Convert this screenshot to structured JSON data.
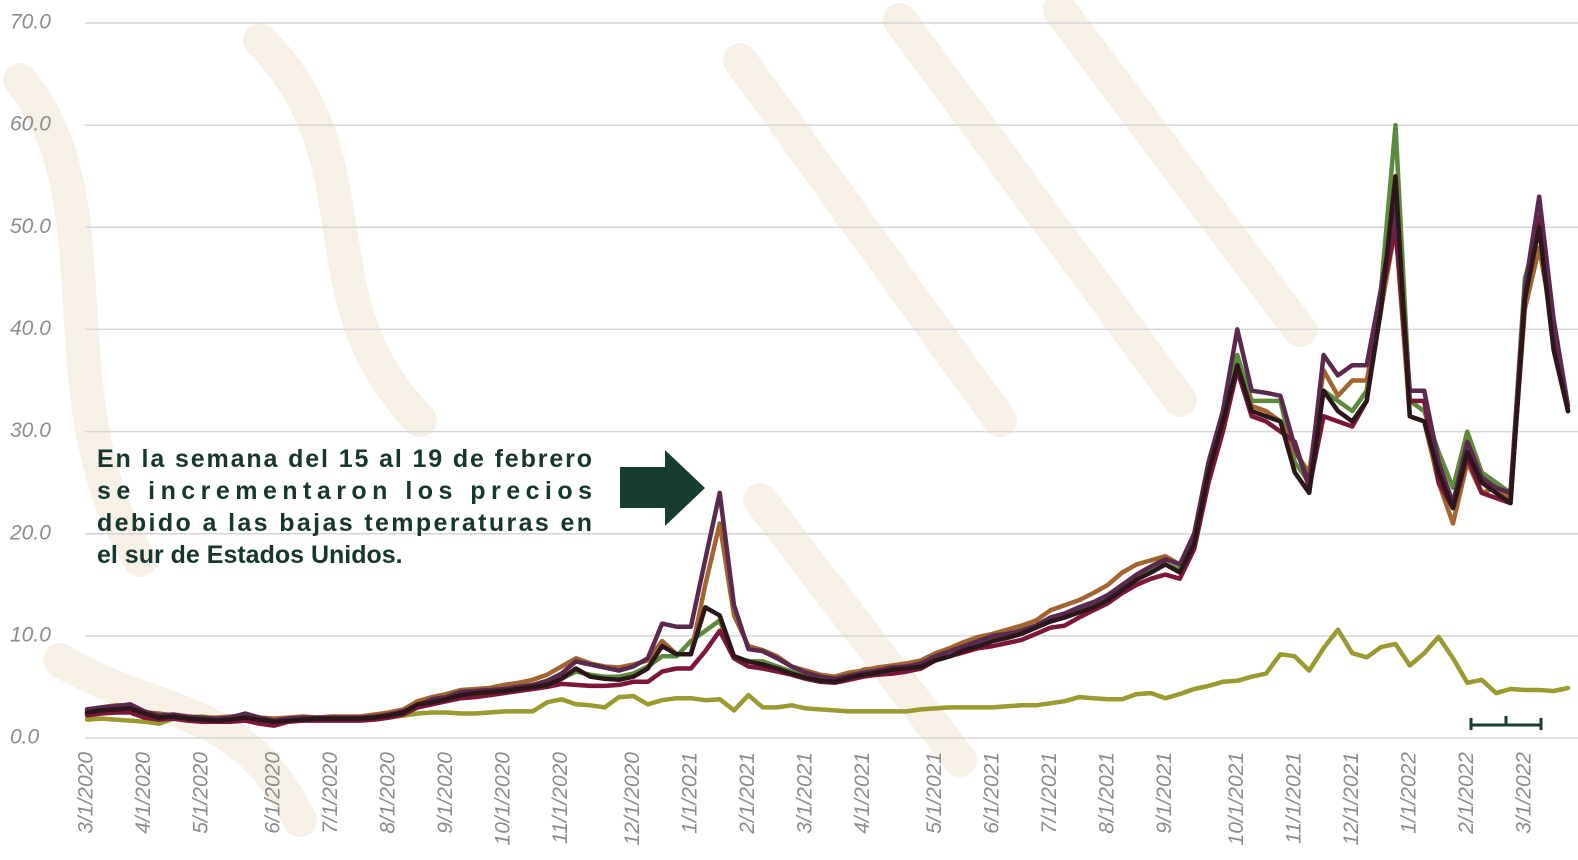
{
  "chart_data": {
    "type": "line",
    "ylim": [
      0,
      70
    ],
    "yticks": [
      {
        "value": 0,
        "label": "0.0"
      },
      {
        "value": 10,
        "label": "10.0"
      },
      {
        "value": 20,
        "label": "20.0"
      },
      {
        "value": 30,
        "label": "30.0"
      },
      {
        "value": 40,
        "label": "40.0"
      },
      {
        "value": 50,
        "label": "50.0"
      },
      {
        "value": 60,
        "label": "60.0"
      },
      {
        "value": 70,
        "label": "70.0"
      }
    ],
    "grid": true,
    "annotation": [
      "En la semana del 15 al 19 de febrero",
      "se incrementaron los precios",
      "debido a las bajas temperaturas en",
      "el sur de Estados Unidos."
    ],
    "categories": [
      "3/1/2020",
      null,
      null,
      null,
      "4/1/2020",
      null,
      null,
      null,
      "5/1/2020",
      null,
      null,
      null,
      null,
      "6/1/2020",
      null,
      null,
      null,
      "7/1/2020",
      null,
      null,
      null,
      "8/1/2020",
      null,
      null,
      null,
      "9/1/2020",
      null,
      null,
      null,
      "10/1/2020",
      null,
      null,
      null,
      "11/1/2020",
      null,
      null,
      null,
      null,
      "12/1/2020",
      null,
      null,
      null,
      "1/1/2021",
      null,
      null,
      null,
      "2/1/2021",
      null,
      null,
      null,
      "3/1/2021",
      null,
      null,
      null,
      "4/1/2021",
      null,
      null,
      null,
      null,
      "5/1/2021",
      null,
      null,
      null,
      "6/1/2021",
      null,
      null,
      null,
      "7/1/2021",
      null,
      null,
      null,
      "8/1/2021",
      null,
      null,
      null,
      "9/1/2021",
      null,
      null,
      null,
      null,
      "10/1/2021",
      null,
      null,
      null,
      "11/1/2021",
      null,
      null,
      null,
      "12/1/2021",
      null,
      null,
      null,
      "1/1/2022",
      null,
      null,
      null,
      "2/1/2022",
      null,
      null,
      null,
      "3/1/2022",
      null,
      null,
      null
    ],
    "series": [
      {
        "color": "#9a9a30",
        "values": [
          1.8,
          1.9,
          1.8,
          1.7,
          1.6,
          1.4,
          1.9,
          2.0,
          2.1,
          1.9,
          1.9,
          2.0,
          2.0,
          1.9,
          1.8,
          1.8,
          1.9,
          2.0,
          2.0,
          2.0,
          2.0,
          2.0,
          2.2,
          2.4,
          2.5,
          2.5,
          2.4,
          2.4,
          2.5,
          2.6,
          2.6,
          2.6,
          3.5,
          3.8,
          3.3,
          3.2,
          3.0,
          4.0,
          4.1,
          3.3,
          3.7,
          3.9,
          3.9,
          3.7,
          3.8,
          2.7,
          4.2,
          3.0,
          3.0,
          3.2,
          2.9,
          2.8,
          2.7,
          2.6,
          2.6,
          2.6,
          2.6,
          2.6,
          2.8,
          2.9,
          3.0,
          3.0,
          3.0,
          3.0,
          3.1,
          3.2,
          3.2,
          3.4,
          3.6,
          4.0,
          3.9,
          3.8,
          3.8,
          4.3,
          4.4,
          3.9,
          4.3,
          4.8,
          5.1,
          5.5,
          5.6,
          6.0,
          6.3,
          8.2,
          8.0,
          6.6,
          8.8,
          10.6,
          8.3,
          7.9,
          8.9,
          9.2,
          7.1,
          8.3,
          9.9,
          7.8,
          5.4,
          5.7,
          4.4,
          4.8,
          4.7,
          4.7,
          4.6,
          4.9
        ]
      },
      {
        "color": "#5e8a3e",
        "values": [
          2.4,
          2.6,
          2.7,
          2.8,
          2.3,
          2.1,
          2.1,
          1.9,
          1.8,
          1.8,
          1.9,
          2.0,
          1.8,
          1.6,
          1.8,
          1.9,
          1.9,
          1.9,
          1.9,
          1.9,
          2.0,
          2.2,
          2.4,
          3.0,
          3.5,
          3.8,
          4.2,
          4.4,
          4.6,
          4.7,
          4.8,
          5.0,
          5.4,
          5.8,
          6.5,
          6.2,
          6.0,
          6.0,
          6.3,
          7.0,
          8.0,
          8.0,
          9.5,
          10.5,
          11.5,
          8.0,
          7.5,
          7.5,
          7.0,
          6.5,
          6.0,
          5.7,
          5.6,
          6.0,
          6.7,
          6.8,
          6.8,
          7.0,
          7.5,
          8.2,
          8.7,
          9.0,
          9.2,
          9.6,
          10.0,
          10.6,
          11.0,
          11.5,
          12.0,
          12.5,
          13.0,
          13.8,
          14.8,
          15.8,
          16.5,
          17.0,
          16.5,
          19.0,
          26.0,
          31.0,
          37.5,
          33.0,
          33.0,
          33.0,
          27.0,
          25.0,
          34.0,
          33.0,
          32.0,
          34.0,
          44.0,
          60.0,
          33.0,
          32.0,
          28.0,
          24.5,
          30.0,
          26.0,
          25.0,
          24.0,
          45.0,
          50.0,
          40.0,
          32.0
        ]
      },
      {
        "color": "#a2652f",
        "values": [
          2.6,
          3.0,
          3.2,
          3.2,
          2.5,
          2.4,
          2.2,
          2.0,
          2.0,
          2.0,
          2.1,
          2.2,
          2.0,
          1.9,
          2.0,
          2.1,
          2.0,
          2.1,
          2.1,
          2.1,
          2.3,
          2.5,
          2.8,
          3.6,
          4.0,
          4.3,
          4.7,
          4.8,
          4.9,
          5.2,
          5.4,
          5.7,
          6.2,
          7.0,
          7.8,
          7.3,
          7.0,
          6.9,
          7.2,
          7.6,
          9.5,
          8.2,
          8.2,
          15.0,
          21.0,
          12.0,
          9.0,
          8.6,
          8.0,
          7.0,
          6.6,
          6.2,
          6.0,
          6.4,
          6.6,
          6.9,
          7.1,
          7.3,
          7.6,
          8.3,
          8.8,
          9.4,
          9.9,
          10.2,
          10.6,
          11.0,
          11.5,
          12.5,
          13.0,
          13.5,
          14.2,
          15.0,
          16.2,
          17.0,
          17.4,
          17.8,
          17.0,
          19.5,
          26.0,
          31.0,
          36.0,
          32.5,
          32.0,
          31.0,
          28.0,
          26.0,
          36.0,
          33.5,
          35.0,
          35.0,
          42.0,
          50.0,
          31.5,
          31.0,
          25.0,
          21.0,
          27.0,
          24.0,
          24.5,
          23.5,
          42.0,
          48.0,
          40.0,
          32.0
        ]
      },
      {
        "color": "#7d1638",
        "values": [
          2.2,
          2.4,
          2.5,
          2.5,
          2.0,
          1.8,
          1.9,
          1.7,
          1.6,
          1.6,
          1.6,
          1.7,
          1.4,
          1.2,
          1.6,
          1.7,
          1.7,
          1.7,
          1.7,
          1.7,
          1.8,
          2.0,
          2.3,
          3.0,
          3.3,
          3.6,
          3.9,
          4.0,
          4.2,
          4.4,
          4.6,
          4.8,
          5.0,
          5.3,
          5.2,
          5.1,
          5.1,
          5.2,
          5.5,
          5.5,
          6.5,
          6.8,
          6.8,
          8.5,
          10.5,
          7.8,
          7.0,
          6.8,
          6.5,
          6.2,
          5.8,
          5.5,
          5.4,
          5.7,
          6.0,
          6.2,
          6.3,
          6.5,
          6.8,
          7.6,
          8.0,
          8.4,
          8.8,
          9.0,
          9.3,
          9.6,
          10.2,
          10.8,
          11.0,
          11.8,
          12.5,
          13.2,
          14.2,
          15.0,
          15.6,
          16.0,
          15.6,
          18.5,
          25.0,
          30.0,
          36.0,
          31.5,
          31.0,
          30.0,
          29.0,
          24.5,
          31.5,
          31.0,
          30.5,
          33.0,
          43.0,
          50.0,
          33.0,
          33.0,
          25.0,
          22.5,
          27.5,
          24.0,
          23.5,
          23.0,
          43.0,
          51.0,
          39.0,
          32.0
        ]
      },
      {
        "color": "#5a2a4e",
        "values": [
          2.8,
          3.0,
          3.1,
          3.3,
          2.6,
          2.2,
          2.3,
          2.1,
          2.0,
          1.9,
          2.0,
          2.4,
          2.0,
          1.7,
          1.9,
          2.0,
          2.0,
          2.0,
          2.0,
          2.0,
          2.1,
          2.3,
          2.6,
          3.2,
          3.8,
          4.0,
          4.5,
          4.6,
          4.7,
          4.8,
          5.0,
          5.2,
          5.6,
          6.3,
          7.5,
          7.2,
          6.9,
          6.6,
          7.0,
          7.8,
          11.2,
          10.9,
          10.9,
          17.5,
          24.0,
          13.0,
          8.7,
          8.5,
          7.8,
          7.0,
          6.4,
          6.0,
          5.8,
          6.1,
          6.4,
          6.6,
          6.9,
          7.0,
          7.3,
          8.0,
          8.5,
          9.0,
          9.5,
          10.0,
          10.2,
          10.5,
          11.0,
          11.8,
          12.2,
          12.8,
          13.3,
          14.0,
          15.0,
          16.0,
          16.8,
          17.5,
          17.0,
          20.0,
          27.0,
          32.0,
          40.0,
          34.0,
          33.8,
          33.5,
          28.5,
          25.0,
          37.5,
          35.5,
          36.5,
          36.5,
          44.0,
          52.0,
          34.0,
          34.0,
          27.0,
          23.0,
          29.0,
          25.5,
          24.5,
          24.0,
          44.0,
          53.0,
          41.0,
          32.5
        ]
      },
      {
        "color": "#2b1619",
        "values": [
          2.5,
          2.7,
          2.8,
          2.9,
          2.4,
          2.0,
          2.1,
          1.9,
          1.8,
          1.7,
          1.8,
          2.0,
          1.8,
          1.6,
          1.7,
          1.8,
          1.9,
          1.9,
          1.9,
          1.9,
          2.0,
          2.2,
          2.5,
          3.3,
          3.5,
          3.8,
          4.2,
          4.4,
          4.5,
          4.6,
          4.8,
          5.0,
          5.2,
          5.8,
          6.8,
          6.0,
          5.8,
          5.7,
          6.0,
          6.8,
          9.0,
          8.2,
          8.2,
          12.8,
          12.0,
          8.0,
          7.5,
          7.2,
          6.8,
          6.3,
          5.9,
          5.6,
          5.5,
          5.9,
          6.2,
          6.4,
          6.7,
          6.8,
          7.0,
          7.6,
          8.0,
          8.6,
          9.0,
          9.5,
          9.8,
          10.2,
          10.8,
          11.4,
          11.8,
          12.3,
          12.8,
          13.5,
          14.5,
          15.5,
          16.2,
          17.0,
          16.2,
          19.0,
          26.0,
          31.0,
          36.5,
          32.0,
          31.5,
          31.0,
          26.0,
          24.0,
          34.0,
          32.0,
          31.0,
          33.0,
          42.0,
          55.0,
          31.5,
          31.0,
          26.0,
          22.5,
          28.0,
          25.0,
          24.0,
          23.0,
          43.0,
          50.0,
          38.0,
          32.0
        ]
      }
    ]
  }
}
